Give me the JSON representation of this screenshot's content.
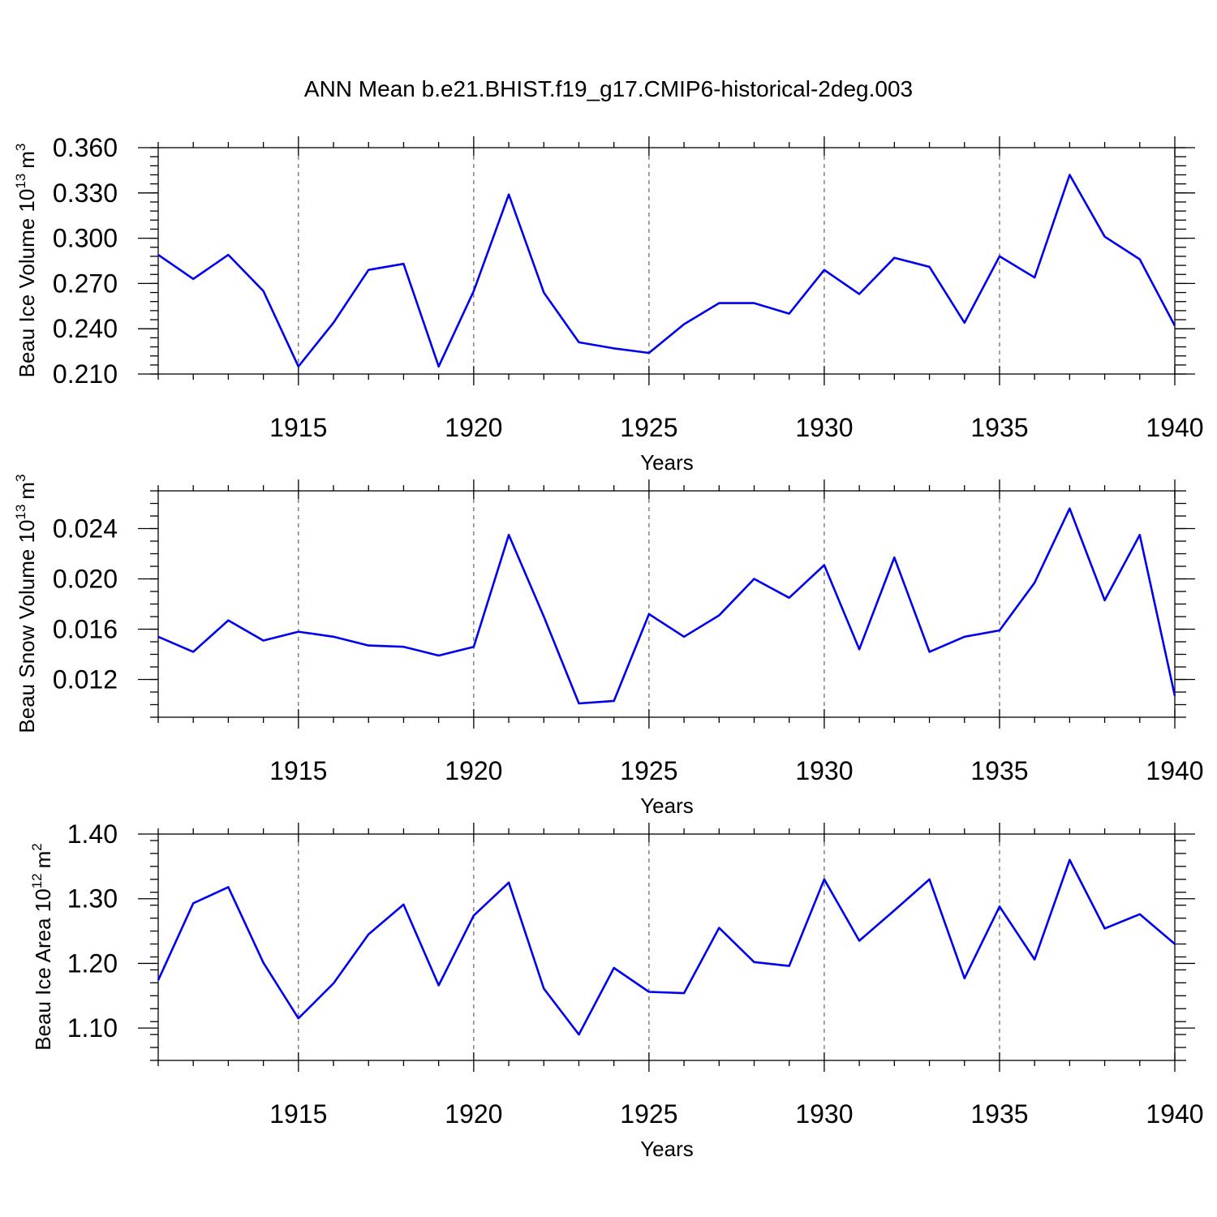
{
  "chart_data": {
    "title": "ANN Mean b.e21.BHIST.f19_g17.CMIP6-historical-2deg.003",
    "panels": [
      {
        "type": "line",
        "ylabel": "Beau Ice Volume",
        "unit_base": "10",
        "unit_exp": "13",
        "unit": "m",
        "unit_pow": "3",
        "xlabel": "Years",
        "xlim": [
          1911,
          1940
        ],
        "ylim": [
          0.21,
          0.36
        ],
        "yticks": [
          "0.360",
          "0.330",
          "0.300",
          "0.270",
          "0.240",
          "0.210"
        ],
        "xticks": [
          "1915",
          "1920",
          "1925",
          "1930",
          "1935",
          "1940"
        ],
        "x": [
          1911,
          1912,
          1913,
          1914,
          1915,
          1916,
          1917,
          1918,
          1919,
          1920,
          1921,
          1922,
          1923,
          1924,
          1925,
          1926,
          1927,
          1928,
          1929,
          1930,
          1931,
          1932,
          1933,
          1934,
          1935,
          1936,
          1937,
          1938,
          1939,
          1940
        ],
        "values": [
          0.289,
          0.273,
          0.289,
          0.265,
          0.215,
          0.244,
          0.279,
          0.283,
          0.215,
          0.265,
          0.329,
          0.264,
          0.231,
          0.227,
          0.224,
          0.243,
          0.257,
          0.257,
          0.25,
          0.279,
          0.263,
          0.287,
          0.281,
          0.244,
          0.288,
          0.274,
          0.342,
          0.301,
          0.286,
          0.242
        ],
        "color": "#0000ee",
        "grid": "dashed verticals at major ticks"
      },
      {
        "type": "line",
        "ylabel": "Beau Snow Volume",
        "unit_base": "10",
        "unit_exp": "13",
        "unit": "m",
        "unit_pow": "3",
        "xlabel": "Years",
        "xlim": [
          1911,
          1940
        ],
        "ylim": [
          0.009,
          0.027
        ],
        "yticks": [
          "0.024",
          "0.020",
          "0.016",
          "0.012"
        ],
        "xticks": [
          "1915",
          "1920",
          "1925",
          "1930",
          "1935",
          "1940"
        ],
        "x": [
          1911,
          1912,
          1913,
          1914,
          1915,
          1916,
          1917,
          1918,
          1919,
          1920,
          1921,
          1922,
          1923,
          1924,
          1925,
          1926,
          1927,
          1928,
          1929,
          1930,
          1931,
          1932,
          1933,
          1934,
          1935,
          1936,
          1937,
          1938,
          1939,
          1940
        ],
        "values": [
          0.0154,
          0.0142,
          0.0167,
          0.0151,
          0.0158,
          0.0154,
          0.0147,
          0.0146,
          0.0139,
          0.0146,
          0.0235,
          0.017,
          0.0101,
          0.0103,
          0.0172,
          0.0154,
          0.0171,
          0.02,
          0.0185,
          0.0211,
          0.0144,
          0.0217,
          0.0142,
          0.0154,
          0.0159,
          0.0197,
          0.0256,
          0.0183,
          0.0235,
          0.0107
        ],
        "color": "#0000ee",
        "grid": "dashed verticals at major ticks"
      },
      {
        "type": "line",
        "ylabel": "Beau Ice Area",
        "unit_base": "10",
        "unit_exp": "12",
        "unit": "m",
        "unit_pow": "2",
        "xlabel": "Years",
        "xlim": [
          1911,
          1940
        ],
        "ylim": [
          1.05,
          1.4
        ],
        "yticks": [
          "1.40",
          "1.30",
          "1.20",
          "1.10"
        ],
        "xticks": [
          "1915",
          "1920",
          "1925",
          "1930",
          "1935",
          "1940"
        ],
        "x": [
          1911,
          1912,
          1913,
          1914,
          1915,
          1916,
          1917,
          1918,
          1919,
          1920,
          1921,
          1922,
          1923,
          1924,
          1925,
          1926,
          1927,
          1928,
          1929,
          1930,
          1931,
          1932,
          1933,
          1934,
          1935,
          1936,
          1937,
          1938,
          1939,
          1940
        ],
        "values": [
          1.174,
          1.293,
          1.318,
          1.201,
          1.115,
          1.169,
          1.245,
          1.291,
          1.166,
          1.274,
          1.325,
          1.161,
          1.09,
          1.193,
          1.156,
          1.154,
          1.255,
          1.202,
          1.196,
          1.33,
          1.235,
          1.282,
          1.33,
          1.177,
          1.288,
          1.206,
          1.36,
          1.254,
          1.276,
          1.23
        ],
        "color": "#0000ee",
        "grid": "dashed verticals at major ticks"
      }
    ]
  }
}
